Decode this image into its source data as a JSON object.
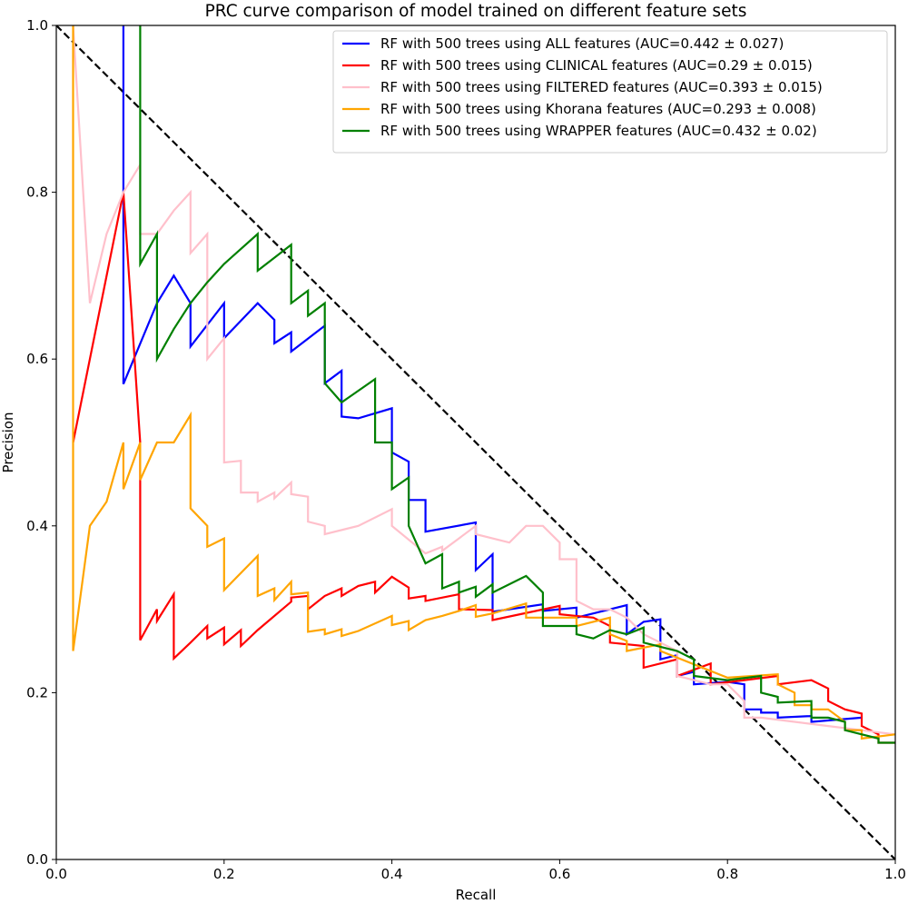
{
  "chart_data": {
    "type": "line",
    "title": "PRC curve comparison of model trained on different feature sets",
    "xlabel": "Recall",
    "ylabel": "Precision",
    "xlim": [
      0,
      1
    ],
    "ylim": [
      0,
      1
    ],
    "xticks": [
      "0.0",
      "0.2",
      "0.4",
      "0.6",
      "0.8",
      "1.0"
    ],
    "yticks": [
      "0.0",
      "0.2",
      "0.4",
      "0.6",
      "0.8",
      "1.0"
    ],
    "grid": false,
    "legend_position": "top-right",
    "baseline": {
      "x": [
        0,
        1
      ],
      "y": [
        1,
        0
      ],
      "style": "dashed",
      "color": "#000000"
    },
    "series": [
      {
        "name": "RF with 500 trees using ALL features (AUC=0.442 ± 0.027)",
        "color": "#0000ff",
        "points": [
          [
            0.08,
            1.0
          ],
          [
            0.08,
            0.57
          ],
          [
            0.12,
            0.667
          ],
          [
            0.14,
            0.7
          ],
          [
            0.16,
            0.667
          ],
          [
            0.16,
            0.615
          ],
          [
            0.2,
            0.667
          ],
          [
            0.2,
            0.625
          ],
          [
            0.24,
            0.667
          ],
          [
            0.26,
            0.647
          ],
          [
            0.26,
            0.619
          ],
          [
            0.28,
            0.632
          ],
          [
            0.28,
            0.609
          ],
          [
            0.32,
            0.64
          ],
          [
            0.32,
            0.571
          ],
          [
            0.34,
            0.586
          ],
          [
            0.34,
            0.531
          ],
          [
            0.36,
            0.529
          ],
          [
            0.4,
            0.541
          ],
          [
            0.4,
            0.488
          ],
          [
            0.42,
            0.477
          ],
          [
            0.42,
            0.431
          ],
          [
            0.44,
            0.431
          ],
          [
            0.44,
            0.393
          ],
          [
            0.5,
            0.404
          ],
          [
            0.5,
            0.347
          ],
          [
            0.52,
            0.366
          ],
          [
            0.52,
            0.297
          ],
          [
            0.58,
            0.306
          ],
          [
            0.58,
            0.298
          ],
          [
            0.62,
            0.302
          ],
          [
            0.62,
            0.29
          ],
          [
            0.68,
            0.305
          ],
          [
            0.68,
            0.27
          ],
          [
            0.7,
            0.285
          ],
          [
            0.72,
            0.288
          ],
          [
            0.72,
            0.24
          ],
          [
            0.74,
            0.245
          ],
          [
            0.74,
            0.22
          ],
          [
            0.76,
            0.225
          ],
          [
            0.76,
            0.21
          ],
          [
            0.8,
            0.213
          ],
          [
            0.82,
            0.21
          ],
          [
            0.82,
            0.18
          ],
          [
            0.84,
            0.18
          ],
          [
            0.84,
            0.176
          ],
          [
            0.86,
            0.176
          ],
          [
            0.86,
            0.17
          ],
          [
            0.9,
            0.172
          ],
          [
            0.9,
            0.165
          ],
          [
            0.96,
            0.17
          ]
        ]
      },
      {
        "name": "RF with 500 trees using CLINICAL features (AUC=0.29 ± 0.015)",
        "color": "#ff0000",
        "points": [
          [
            0.02,
            0.5
          ],
          [
            0.08,
            0.8
          ],
          [
            0.1,
            0.5
          ],
          [
            0.1,
            0.263
          ],
          [
            0.12,
            0.3
          ],
          [
            0.12,
            0.286
          ],
          [
            0.14,
            0.318
          ],
          [
            0.14,
            0.241
          ],
          [
            0.16,
            0.26
          ],
          [
            0.18,
            0.28
          ],
          [
            0.18,
            0.265
          ],
          [
            0.2,
            0.278
          ],
          [
            0.2,
            0.258
          ],
          [
            0.22,
            0.275
          ],
          [
            0.22,
            0.256
          ],
          [
            0.24,
            0.275
          ],
          [
            0.28,
            0.309
          ],
          [
            0.28,
            0.314
          ],
          [
            0.3,
            0.316
          ],
          [
            0.3,
            0.3
          ],
          [
            0.32,
            0.316
          ],
          [
            0.34,
            0.325
          ],
          [
            0.34,
            0.316
          ],
          [
            0.36,
            0.328
          ],
          [
            0.38,
            0.333
          ],
          [
            0.38,
            0.32
          ],
          [
            0.4,
            0.339
          ],
          [
            0.42,
            0.326
          ],
          [
            0.42,
            0.313
          ],
          [
            0.44,
            0.316
          ],
          [
            0.44,
            0.31
          ],
          [
            0.48,
            0.318
          ],
          [
            0.48,
            0.3
          ],
          [
            0.52,
            0.299
          ],
          [
            0.52,
            0.287
          ],
          [
            0.6,
            0.304
          ],
          [
            0.6,
            0.294
          ],
          [
            0.64,
            0.29
          ],
          [
            0.66,
            0.28
          ],
          [
            0.66,
            0.26
          ],
          [
            0.7,
            0.256
          ],
          [
            0.7,
            0.23
          ],
          [
            0.74,
            0.24
          ],
          [
            0.74,
            0.22
          ],
          [
            0.78,
            0.235
          ],
          [
            0.78,
            0.21
          ],
          [
            0.86,
            0.22
          ],
          [
            0.86,
            0.21
          ],
          [
            0.9,
            0.215
          ],
          [
            0.92,
            0.205
          ],
          [
            0.92,
            0.19
          ],
          [
            0.94,
            0.18
          ],
          [
            0.96,
            0.175
          ],
          [
            0.96,
            0.16
          ],
          [
            0.98,
            0.15
          ],
          [
            0.98,
            0.14
          ],
          [
            1.0,
            0.14
          ]
        ]
      },
      {
        "name": "RF with 500 trees using FILTERED features (AUC=0.393 ± 0.015)",
        "color": "#ffc0cb",
        "points": [
          [
            0.02,
            1.0
          ],
          [
            0.04,
            0.667
          ],
          [
            0.06,
            0.75
          ],
          [
            0.08,
            0.8
          ],
          [
            0.1,
            0.833
          ],
          [
            0.1,
            0.75
          ],
          [
            0.12,
            0.75
          ],
          [
            0.14,
            0.778
          ],
          [
            0.16,
            0.8
          ],
          [
            0.16,
            0.727
          ],
          [
            0.18,
            0.75
          ],
          [
            0.18,
            0.6
          ],
          [
            0.2,
            0.625
          ],
          [
            0.2,
            0.476
          ],
          [
            0.22,
            0.478
          ],
          [
            0.22,
            0.44
          ],
          [
            0.24,
            0.44
          ],
          [
            0.24,
            0.429
          ],
          [
            0.26,
            0.44
          ],
          [
            0.26,
            0.433
          ],
          [
            0.28,
            0.452
          ],
          [
            0.28,
            0.438
          ],
          [
            0.3,
            0.435
          ],
          [
            0.3,
            0.405
          ],
          [
            0.32,
            0.4
          ],
          [
            0.32,
            0.39
          ],
          [
            0.36,
            0.4
          ],
          [
            0.4,
            0.42
          ],
          [
            0.4,
            0.4
          ],
          [
            0.44,
            0.367
          ],
          [
            0.46,
            0.375
          ],
          [
            0.46,
            0.37
          ],
          [
            0.5,
            0.4
          ],
          [
            0.5,
            0.39
          ],
          [
            0.54,
            0.38
          ],
          [
            0.56,
            0.4
          ],
          [
            0.58,
            0.4
          ],
          [
            0.6,
            0.38
          ],
          [
            0.6,
            0.36
          ],
          [
            0.62,
            0.36
          ],
          [
            0.62,
            0.31
          ],
          [
            0.64,
            0.3
          ],
          [
            0.66,
            0.3
          ],
          [
            0.68,
            0.29
          ],
          [
            0.7,
            0.27
          ],
          [
            0.72,
            0.26
          ],
          [
            0.74,
            0.25
          ],
          [
            0.74,
            0.22
          ],
          [
            0.78,
            0.21
          ],
          [
            0.8,
            0.21
          ],
          [
            0.82,
            0.19
          ],
          [
            0.82,
            0.17
          ],
          [
            0.84,
            0.17
          ],
          [
            0.88,
            0.165
          ],
          [
            0.92,
            0.16
          ],
          [
            0.96,
            0.155
          ],
          [
            1.0,
            0.15
          ]
        ]
      },
      {
        "name": "RF with 500 trees using Khorana features (AUC=0.293 ± 0.008)",
        "color": "#ffa500",
        "points": [
          [
            0.02,
            1.0
          ],
          [
            0.02,
            0.25
          ],
          [
            0.04,
            0.4
          ],
          [
            0.06,
            0.429
          ],
          [
            0.08,
            0.5
          ],
          [
            0.08,
            0.444
          ],
          [
            0.1,
            0.5
          ],
          [
            0.1,
            0.455
          ],
          [
            0.12,
            0.5
          ],
          [
            0.14,
            0.5
          ],
          [
            0.16,
            0.533
          ],
          [
            0.16,
            0.421
          ],
          [
            0.18,
            0.4
          ],
          [
            0.18,
            0.375
          ],
          [
            0.2,
            0.385
          ],
          [
            0.2,
            0.323
          ],
          [
            0.24,
            0.364
          ],
          [
            0.24,
            0.316
          ],
          [
            0.26,
            0.325
          ],
          [
            0.26,
            0.311
          ],
          [
            0.28,
            0.333
          ],
          [
            0.28,
            0.318
          ],
          [
            0.3,
            0.32
          ],
          [
            0.3,
            0.273
          ],
          [
            0.32,
            0.276
          ],
          [
            0.32,
            0.27
          ],
          [
            0.34,
            0.276
          ],
          [
            0.34,
            0.268
          ],
          [
            0.36,
            0.274
          ],
          [
            0.4,
            0.292
          ],
          [
            0.4,
            0.281
          ],
          [
            0.42,
            0.286
          ],
          [
            0.42,
            0.275
          ],
          [
            0.44,
            0.287
          ],
          [
            0.46,
            0.292
          ],
          [
            0.48,
            0.298
          ],
          [
            0.5,
            0.305
          ],
          [
            0.5,
            0.291
          ],
          [
            0.52,
            0.295
          ],
          [
            0.56,
            0.307
          ],
          [
            0.56,
            0.29
          ],
          [
            0.62,
            0.29
          ],
          [
            0.62,
            0.28
          ],
          [
            0.66,
            0.29
          ],
          [
            0.66,
            0.27
          ],
          [
            0.68,
            0.262
          ],
          [
            0.68,
            0.25
          ],
          [
            0.72,
            0.258
          ],
          [
            0.72,
            0.25
          ],
          [
            0.8,
            0.218
          ],
          [
            0.86,
            0.222
          ],
          [
            0.86,
            0.21
          ],
          [
            0.88,
            0.2
          ],
          [
            0.88,
            0.185
          ],
          [
            0.9,
            0.185
          ],
          [
            0.9,
            0.18
          ],
          [
            0.92,
            0.18
          ],
          [
            0.94,
            0.165
          ],
          [
            0.94,
            0.155
          ],
          [
            0.96,
            0.155
          ],
          [
            0.96,
            0.145
          ],
          [
            1.0,
            0.15
          ]
        ]
      },
      {
        "name": "RF with 500 trees using WRAPPER features (AUC=0.432 ± 0.02)",
        "color": "#008000",
        "points": [
          [
            0.1,
            1.0
          ],
          [
            0.1,
            0.714
          ],
          [
            0.12,
            0.75
          ],
          [
            0.12,
            0.6
          ],
          [
            0.14,
            0.636
          ],
          [
            0.16,
            0.667
          ],
          [
            0.18,
            0.692
          ],
          [
            0.2,
            0.714
          ],
          [
            0.24,
            0.75
          ],
          [
            0.24,
            0.706
          ],
          [
            0.28,
            0.737
          ],
          [
            0.28,
            0.667
          ],
          [
            0.3,
            0.682
          ],
          [
            0.3,
            0.652
          ],
          [
            0.32,
            0.667
          ],
          [
            0.32,
            0.571
          ],
          [
            0.34,
            0.548
          ],
          [
            0.38,
            0.576
          ],
          [
            0.38,
            0.5
          ],
          [
            0.4,
            0.5
          ],
          [
            0.4,
            0.444
          ],
          [
            0.42,
            0.458
          ],
          [
            0.42,
            0.4
          ],
          [
            0.44,
            0.355
          ],
          [
            0.46,
            0.366
          ],
          [
            0.46,
            0.325
          ],
          [
            0.48,
            0.333
          ],
          [
            0.48,
            0.32
          ],
          [
            0.5,
            0.327
          ],
          [
            0.5,
            0.315
          ],
          [
            0.52,
            0.33
          ],
          [
            0.52,
            0.32
          ],
          [
            0.56,
            0.34
          ],
          [
            0.58,
            0.32
          ],
          [
            0.58,
            0.28
          ],
          [
            0.62,
            0.28
          ],
          [
            0.62,
            0.27
          ],
          [
            0.64,
            0.265
          ],
          [
            0.66,
            0.275
          ],
          [
            0.68,
            0.27
          ],
          [
            0.7,
            0.278
          ],
          [
            0.7,
            0.26
          ],
          [
            0.74,
            0.25
          ],
          [
            0.76,
            0.24
          ],
          [
            0.76,
            0.22
          ],
          [
            0.8,
            0.215
          ],
          [
            0.84,
            0.22
          ],
          [
            0.84,
            0.2
          ],
          [
            0.86,
            0.195
          ],
          [
            0.86,
            0.188
          ],
          [
            0.9,
            0.19
          ],
          [
            0.9,
            0.17
          ],
          [
            0.92,
            0.17
          ],
          [
            0.94,
            0.165
          ],
          [
            0.94,
            0.155
          ],
          [
            0.98,
            0.145
          ],
          [
            0.98,
            0.14
          ],
          [
            1.0,
            0.14
          ]
        ]
      }
    ]
  }
}
